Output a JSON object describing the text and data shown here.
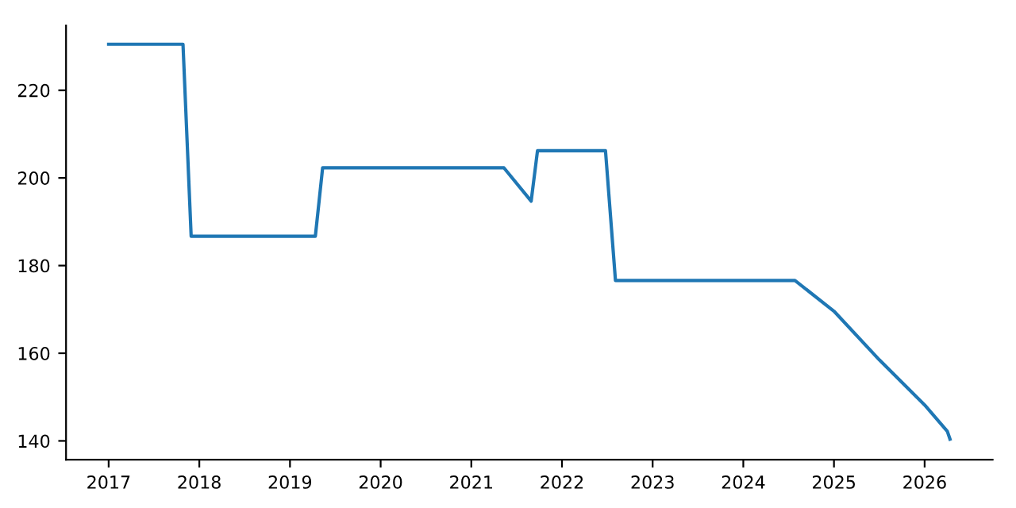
{
  "chart_data": {
    "type": "line",
    "x": [
      2017.0,
      2017.82,
      2017.91,
      2019.28,
      2019.36,
      2021.36,
      2021.66,
      2021.73,
      2022.48,
      2022.59,
      2024.57,
      2025.0,
      2025.5,
      2026.0,
      2026.25,
      2026.28
    ],
    "series": [
      {
        "color": "#1f77b4",
        "values": [
          230.5,
          230.5,
          186.7,
          186.7,
          202.3,
          202.3,
          194.7,
          206.2,
          206.2,
          176.6,
          176.6,
          169.6,
          158.5,
          148.2,
          142.2,
          140.4
        ]
      }
    ],
    "xlim": [
      2016.53,
      2026.75
    ],
    "ylim": [
      135.7,
      234.8
    ],
    "xticks": [
      2017,
      2018,
      2019,
      2020,
      2021,
      2022,
      2023,
      2024,
      2025,
      2026
    ],
    "yticks": [
      140,
      160,
      180,
      200,
      220
    ],
    "grid": false,
    "legend": false,
    "marker": "none",
    "line_style": "solid"
  }
}
